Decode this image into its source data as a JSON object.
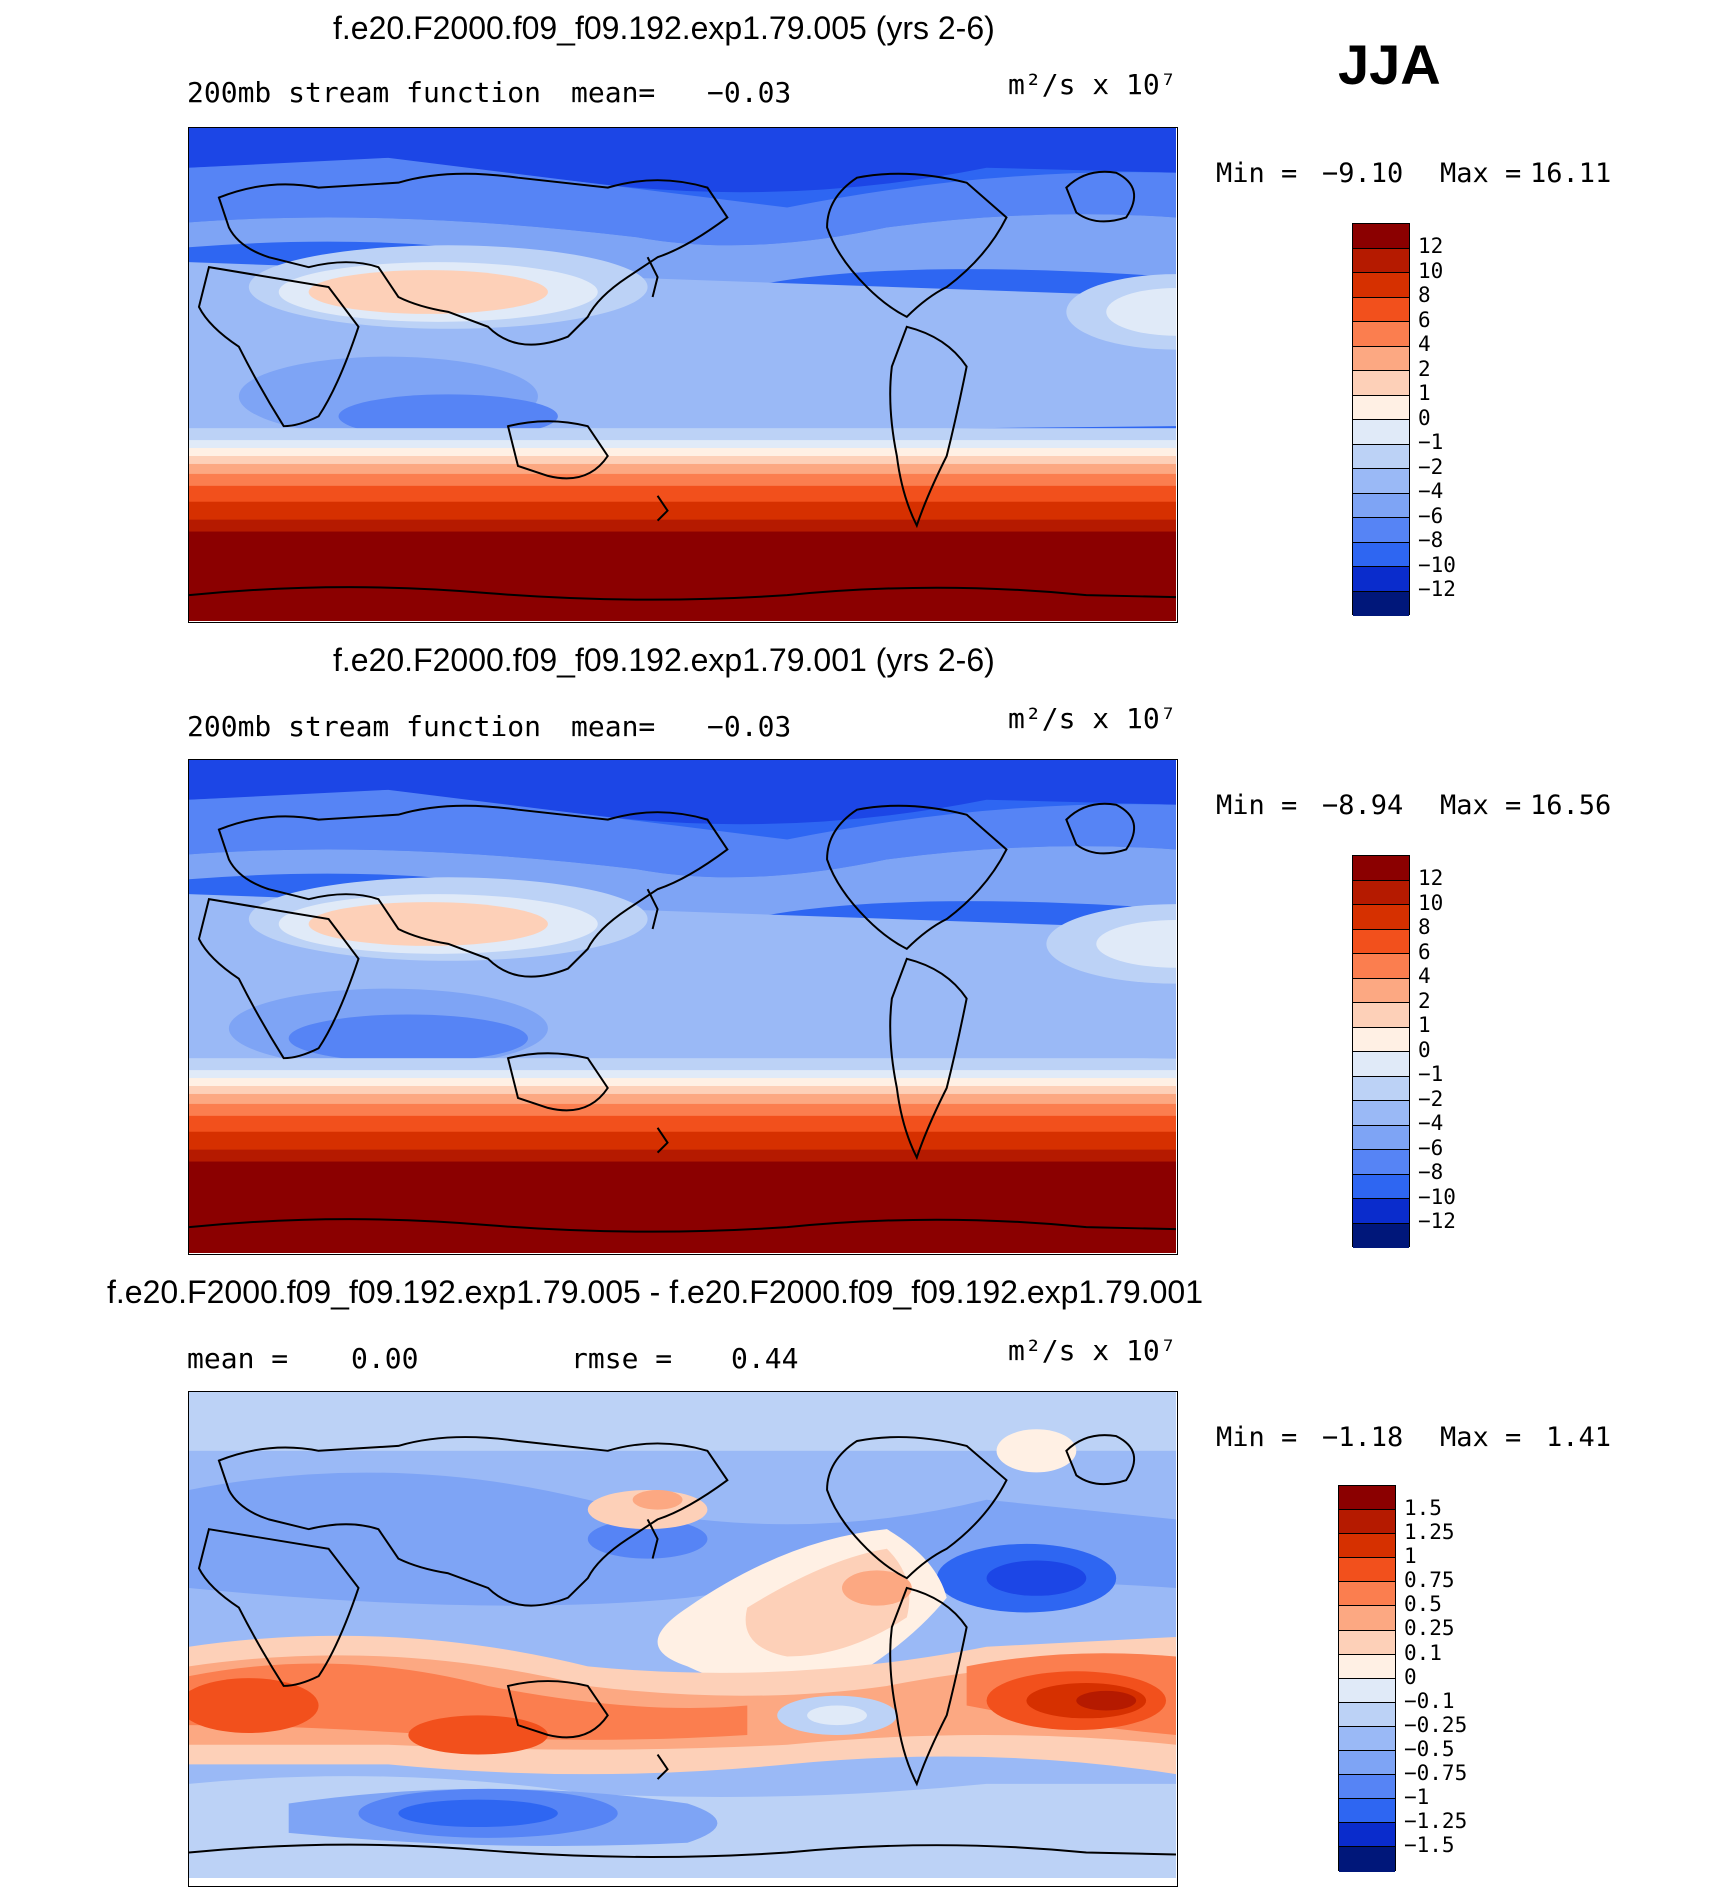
{
  "season": "JJA",
  "colors": {
    "warm": [
      "#8b0000",
      "#b51a00",
      "#d63000",
      "#f2501c",
      "#fb7e4f",
      "#fca882",
      "#fdd0b8",
      "#fff0e4"
    ],
    "cool": [
      "#e0eaf8",
      "#bcd2f6",
      "#9ab9f6",
      "#7ea4f5",
      "#5684f5",
      "#2e66f2",
      "#1c46e6",
      "#0a2ccc",
      "#00177a"
    ],
    "coast": "#000000"
  },
  "panels": [
    {
      "title": "f.e20.F2000.f09_f09.192.exp1.79.005 (yrs 2-6)",
      "left_text": "200mb stream function",
      "mean_label": "mean=",
      "mean_value": "−0.03",
      "units": "m²/s x 10⁷",
      "min_label": "Min =",
      "min_value": "−9.10",
      "max_label": "Max =",
      "max_value": "16.11",
      "colorbar_labels": [
        "12",
        "10",
        "8",
        "6",
        "4",
        "2",
        "1",
        "0",
        "−1",
        "−2",
        "−4",
        "−6",
        "−8",
        "−10",
        "−12"
      ]
    },
    {
      "title": "f.e20.F2000.f09_f09.192.exp1.79.001 (yrs 2-6)",
      "left_text": "200mb stream function",
      "mean_label": "mean=",
      "mean_value": "−0.03",
      "units": "m²/s x 10⁷",
      "min_label": "Min =",
      "min_value": "−8.94",
      "max_label": "Max =",
      "max_value": "16.56",
      "colorbar_labels": [
        "12",
        "10",
        "8",
        "6",
        "4",
        "2",
        "1",
        "0",
        "−1",
        "−2",
        "−4",
        "−6",
        "−8",
        "−10",
        "−12"
      ]
    },
    {
      "title": "f.e20.F2000.f09_f09.192.exp1.79.005 - f.e20.F2000.f09_f09.192.exp1.79.001",
      "mean_label": "mean =",
      "mean_value": "0.00",
      "rmse_label": "rmse =",
      "rmse_value": "0.44",
      "units": "m²/s x 10⁷",
      "min_label": "Min =",
      "min_value": "−1.18",
      "max_label": "Max =",
      "max_value": "1.41",
      "colorbar_labels": [
        "1.5",
        "1.25",
        "1",
        "0.75",
        "0.5",
        "0.25",
        "0.1",
        "0",
        "−0.1",
        "−0.25",
        "−0.5",
        "−0.75",
        "−1",
        "−1.25",
        "−1.5"
      ]
    }
  ],
  "chart_data": [
    {
      "type": "heatmap",
      "title": "f.e20.F2000.f09_f09.192.exp1.79.005 (yrs 2-6)",
      "subtitle": "200mb stream function",
      "mean": -0.03,
      "min": -9.1,
      "max": 16.11,
      "units": "m²/s x 10⁷",
      "levels": [
        -12,
        -10,
        -8,
        -6,
        -4,
        -2,
        -1,
        0,
        1,
        2,
        4,
        6,
        8,
        10,
        12
      ],
      "zonal_profile": {
        "lat": [
          90,
          75,
          60,
          45,
          30,
          15,
          0,
          -10,
          -20,
          -30,
          -40,
          -50,
          -60,
          -75,
          -90
        ],
        "value": [
          -11,
          -9,
          -7,
          -4,
          -1,
          -3,
          -4,
          -3,
          -1,
          3,
          7,
          11,
          14,
          16,
          16
        ]
      }
    },
    {
      "type": "heatmap",
      "title": "f.e20.F2000.f09_f09.192.exp1.79.001 (yrs 2-6)",
      "subtitle": "200mb stream function",
      "mean": -0.03,
      "min": -8.94,
      "max": 16.56,
      "units": "m²/s x 10⁷",
      "levels": [
        -12,
        -10,
        -8,
        -6,
        -4,
        -2,
        -1,
        0,
        1,
        2,
        4,
        6,
        8,
        10,
        12
      ],
      "zonal_profile": {
        "lat": [
          90,
          75,
          60,
          45,
          30,
          15,
          0,
          -10,
          -20,
          -30,
          -40,
          -50,
          -60,
          -75,
          -90
        ],
        "value": [
          -11,
          -9,
          -7,
          -4,
          -1,
          -3,
          -4,
          -3,
          -1,
          3,
          7,
          11,
          14,
          16,
          16
        ]
      }
    },
    {
      "type": "heatmap",
      "title": "f.e20.F2000.f09_f09.192.exp1.79.005 - f.e20.F2000.f09_f09.192.exp1.79.001",
      "mean": 0.0,
      "rmse": 0.44,
      "min": -1.18,
      "max": 1.41,
      "units": "m²/s x 10⁷",
      "levels": [
        -1.5,
        -1.25,
        -1,
        -0.75,
        -0.5,
        -0.25,
        -0.1,
        0,
        0.1,
        0.25,
        0.5,
        0.75,
        1,
        1.25,
        1.5
      ]
    }
  ]
}
